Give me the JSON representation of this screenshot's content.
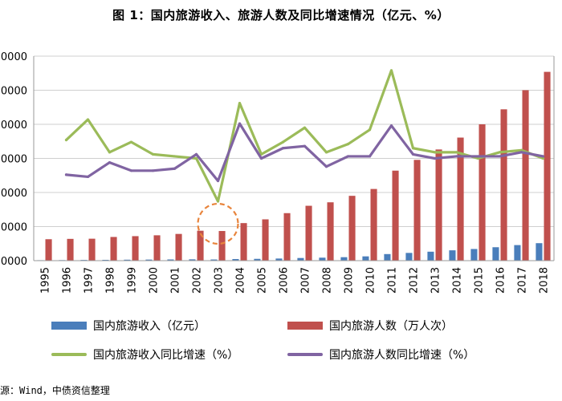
{
  "chart_data": {
    "type": "bar",
    "title": "图 1：国内旅游收入、旅游人数及同比增速情况（亿元、%）",
    "categories": [
      "1995",
      "1996",
      "1997",
      "1998",
      "1999",
      "2000",
      "2001",
      "2002",
      "2003",
      "2004",
      "2005",
      "2006",
      "2007",
      "2008",
      "2009",
      "2010",
      "2011",
      "2012",
      "2013",
      "2014",
      "2015",
      "2016",
      "2017",
      "2018"
    ],
    "y_left": {
      "ticks": [
        "0000",
        "0000",
        "0000",
        "0000",
        "0000",
        "0000",
        "0000"
      ],
      "range": [
        0,
        600000
      ]
    },
    "y_right_range": [
      -40,
      60
    ],
    "grid": true,
    "legend_position": "bottom",
    "series": [
      {
        "name": "国内旅游收入（亿元）",
        "type": "bar",
        "axis": "left",
        "color": "#4a7ebb",
        "values": [
          1376,
          1638,
          2113,
          2391,
          2832,
          3176,
          3522,
          3878,
          3442,
          4711,
          5286,
          6230,
          7771,
          8749,
          10184,
          12580,
          19305,
          22706,
          26276,
          30312,
          34195,
          39390,
          45661,
          51278
        ]
      },
      {
        "name": "国内旅游人数（万人次）",
        "type": "bar",
        "axis": "left",
        "color": "#c0504d",
        "values": [
          62900,
          63900,
          64400,
          69500,
          71900,
          74400,
          78400,
          87800,
          87000,
          110200,
          121200,
          139400,
          161000,
          171200,
          190200,
          210300,
          264100,
          295700,
          326200,
          361100,
          400000,
          444000,
          500100,
          553900
        ]
      },
      {
        "name": "国内旅游收入同比增速（%）",
        "type": "line",
        "axis": "right",
        "color": "#9bbb59",
        "values": [
          null,
          19,
          29,
          13,
          18,
          12,
          11,
          10,
          -11,
          37,
          12,
          18,
          25,
          13,
          17,
          24,
          53,
          15,
          13,
          13,
          10,
          13,
          14,
          10
        ]
      },
      {
        "name": "国内旅游人数同比增速（%）",
        "type": "line",
        "axis": "right",
        "color": "#8064a2",
        "values": [
          null,
          2,
          1,
          8,
          4,
          4,
          5,
          12,
          -1,
          27,
          10,
          15,
          16,
          6,
          11,
          11,
          26,
          12,
          10,
          11,
          11,
          11,
          13,
          11
        ]
      }
    ],
    "annotation": {
      "type": "circle",
      "target_category": "2003",
      "style": "dashed",
      "color": "#e8843c"
    }
  },
  "source_note": "源：Wind，中债资信整理"
}
